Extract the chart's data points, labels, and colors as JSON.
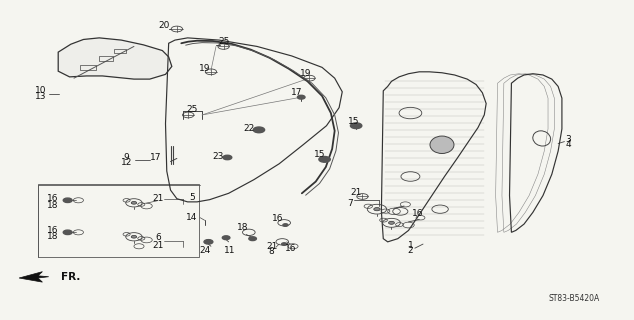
{
  "bg_color": "#f5f5f0",
  "diagram_ref": "ST83-B5420A",
  "figsize": [
    6.34,
    3.2
  ],
  "dpi": 100,
  "lc": "#444444",
  "parts": {
    "glass_panel": {
      "x": [
        0.09,
        0.11,
        0.13,
        0.155,
        0.19,
        0.225,
        0.255,
        0.265,
        0.27,
        0.26,
        0.235,
        0.21,
        0.185,
        0.16,
        0.135,
        0.108,
        0.09
      ],
      "y": [
        0.84,
        0.865,
        0.88,
        0.885,
        0.878,
        0.863,
        0.845,
        0.825,
        0.795,
        0.77,
        0.755,
        0.755,
        0.76,
        0.765,
        0.765,
        0.762,
        0.78
      ]
    },
    "trim_panel": {
      "x": [
        0.265,
        0.275,
        0.295,
        0.345,
        0.405,
        0.46,
        0.508,
        0.528,
        0.54,
        0.535,
        0.515,
        0.478,
        0.44,
        0.4,
        0.36,
        0.33,
        0.31,
        0.295,
        0.278,
        0.268,
        0.262,
        0.26,
        0.265
      ],
      "y": [
        0.868,
        0.878,
        0.885,
        0.878,
        0.858,
        0.828,
        0.792,
        0.758,
        0.715,
        0.665,
        0.608,
        0.548,
        0.488,
        0.438,
        0.395,
        0.375,
        0.368,
        0.368,
        0.378,
        0.405,
        0.465,
        0.615,
        0.868
      ]
    },
    "weatherstrip_outer": {
      "x": [
        0.285,
        0.296,
        0.31,
        0.335,
        0.365,
        0.395,
        0.425,
        0.455,
        0.485,
        0.508,
        0.522,
        0.528,
        0.524,
        0.514,
        0.498,
        0.476
      ],
      "y": [
        0.868,
        0.873,
        0.876,
        0.875,
        0.866,
        0.848,
        0.822,
        0.788,
        0.748,
        0.702,
        0.648,
        0.592,
        0.535,
        0.478,
        0.432,
        0.395
      ]
    },
    "weatherstrip_inner": {
      "x": [
        0.292,
        0.303,
        0.318,
        0.342,
        0.372,
        0.402,
        0.432,
        0.462,
        0.492,
        0.514,
        0.528,
        0.534,
        0.53,
        0.52,
        0.504,
        0.482
      ],
      "y": [
        0.862,
        0.867,
        0.87,
        0.869,
        0.86,
        0.842,
        0.816,
        0.782,
        0.742,
        0.696,
        0.642,
        0.586,
        0.529,
        0.472,
        0.426,
        0.389
      ]
    },
    "inner_door": {
      "x": [
        0.605,
        0.612,
        0.618,
        0.63,
        0.645,
        0.662,
        0.678,
        0.698,
        0.718,
        0.738,
        0.752,
        0.762,
        0.768,
        0.765,
        0.755,
        0.74,
        0.722,
        0.702,
        0.682,
        0.662,
        0.645,
        0.628,
        0.612,
        0.605,
        0.602,
        0.605
      ],
      "y": [
        0.718,
        0.732,
        0.748,
        0.762,
        0.772,
        0.778,
        0.778,
        0.775,
        0.768,
        0.755,
        0.738,
        0.712,
        0.678,
        0.642,
        0.602,
        0.558,
        0.505,
        0.448,
        0.388,
        0.328,
        0.278,
        0.252,
        0.242,
        0.252,
        0.338,
        0.718
      ]
    },
    "outer_door": {
      "x": [
        0.808,
        0.818,
        0.828,
        0.842,
        0.858,
        0.872,
        0.882,
        0.888,
        0.888,
        0.882,
        0.872,
        0.858,
        0.842,
        0.828,
        0.815,
        0.808,
        0.805,
        0.808
      ],
      "y": [
        0.742,
        0.758,
        0.768,
        0.772,
        0.768,
        0.755,
        0.732,
        0.695,
        0.598,
        0.528,
        0.455,
        0.388,
        0.335,
        0.298,
        0.278,
        0.272,
        0.388,
        0.742
      ]
    }
  }
}
